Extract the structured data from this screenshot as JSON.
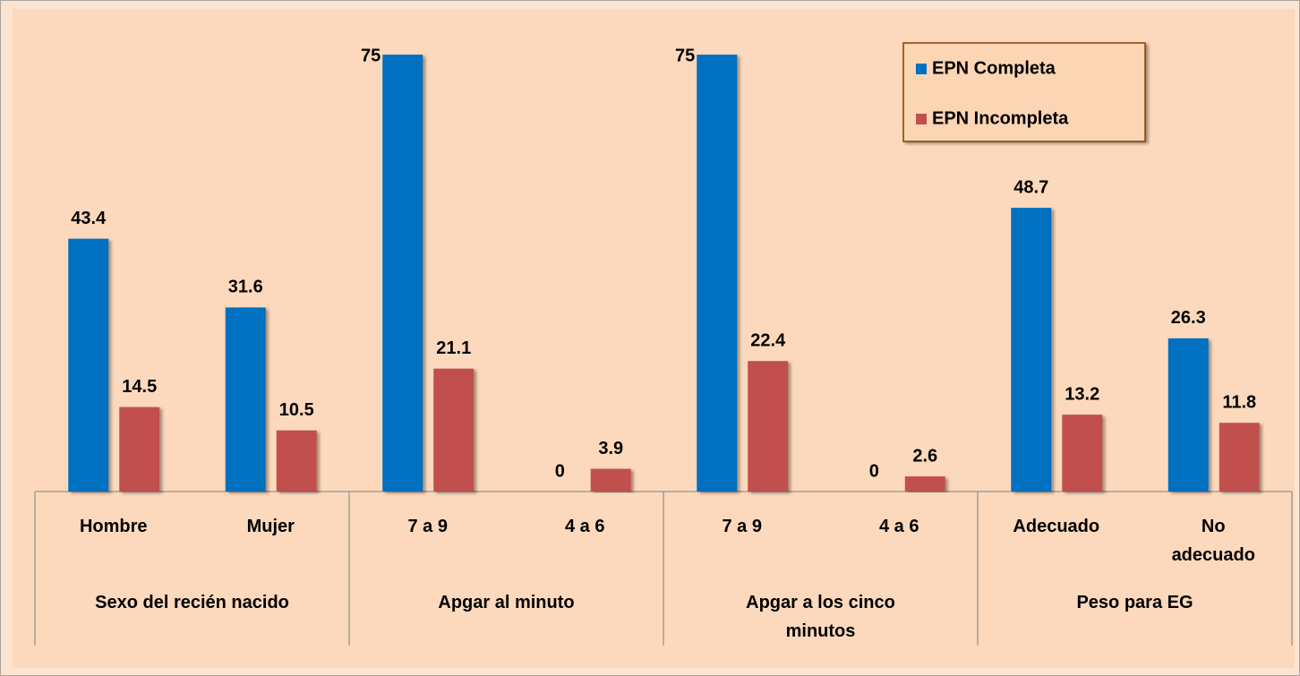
{
  "chart_data": {
    "type": "bar",
    "categories": [
      "Hombre",
      "Mujer",
      "7 a 9",
      "4 a 6",
      "7 a 9",
      "4 a 6",
      "Adecuado",
      "No adecuado"
    ],
    "groups": [
      "Sexo del recién nacido",
      "Apgar al minuto",
      "Apgar a los cinco minutos",
      "Peso para EG"
    ],
    "series": [
      {
        "name": "EPN Completa",
        "color": "#0070c0",
        "values": [
          43.4,
          31.6,
          75,
          0,
          75,
          0,
          48.7,
          26.3
        ]
      },
      {
        "name": "EPN Incompleta",
        "color": "#c0504d",
        "values": [
          14.5,
          10.5,
          21.1,
          3.9,
          22.4,
          2.6,
          13.2,
          11.8
        ]
      }
    ],
    "legend": "upper-right"
  }
}
